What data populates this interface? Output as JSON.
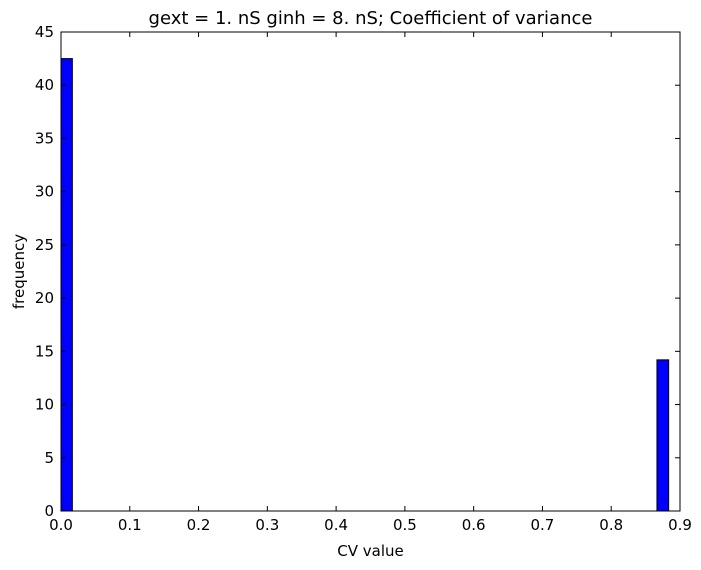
{
  "chart_data": {
    "type": "bar",
    "title": "gext = 1. nS ginh = 8. nS; Coefficient of variance",
    "xlabel": "CV value",
    "ylabel": "frequency",
    "xlim": [
      0.0,
      0.9
    ],
    "ylim": [
      0,
      45
    ],
    "xticks": [
      "0.0",
      "0.1",
      "0.2",
      "0.3",
      "0.4",
      "0.5",
      "0.6",
      "0.7",
      "0.8",
      "0.9"
    ],
    "yticks": [
      "0",
      "5",
      "10",
      "15",
      "20",
      "25",
      "30",
      "35",
      "40",
      "45"
    ],
    "grid": false,
    "legend": "none",
    "bar_color": "#0000ff",
    "bars": [
      {
        "x0": 0.0,
        "x1": 0.0165,
        "value": 42.5
      },
      {
        "x0": 0.8665,
        "x1": 0.8835,
        "value": 14.2
      }
    ]
  }
}
